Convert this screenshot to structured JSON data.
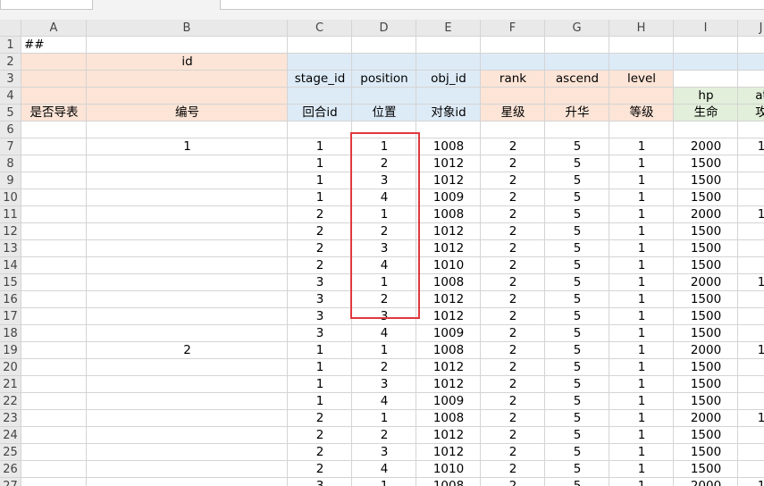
{
  "columns": [
    "A",
    "B",
    "C",
    "D",
    "E",
    "F",
    "G",
    "H",
    "I",
    "J"
  ],
  "rows": [
    1,
    2,
    3,
    4,
    5,
    6,
    7,
    8,
    9,
    10,
    11,
    12,
    13,
    14,
    15,
    16,
    17,
    18,
    19,
    20,
    21,
    22,
    23,
    24,
    25,
    26,
    27
  ],
  "cells": {
    "A1": "##",
    "B2": "id",
    "C3": "stage_id",
    "D3": "position",
    "E3": "obj_id",
    "F3": "rank",
    "G3": "ascend",
    "H3": "level",
    "I4": "hp",
    "J4": "at",
    "A5": "是否导表",
    "B5": "编号",
    "C5": "回合id",
    "D5": "位置",
    "E5": "对象id",
    "F5": "星级",
    "G5": "升华",
    "H5": "等级",
    "I5": "生命",
    "J5": "攻",
    "B7": 1,
    "C7": 1,
    "D7": 1,
    "E7": 1008,
    "F7": 2,
    "G7": 5,
    "H7": 1,
    "I7": 2000,
    "J7": 1,
    "C8": 1,
    "D8": 2,
    "E8": 1012,
    "F8": 2,
    "G8": 5,
    "H8": 1,
    "I8": 1500,
    "C9": 1,
    "D9": 3,
    "E9": 1012,
    "F9": 2,
    "G9": 5,
    "H9": 1,
    "I9": 1500,
    "C10": 1,
    "D10": 4,
    "E10": 1009,
    "F10": 2,
    "G10": 5,
    "H10": 1,
    "I10": 1500,
    "C11": 2,
    "D11": 1,
    "E11": 1008,
    "F11": 2,
    "G11": 5,
    "H11": 1,
    "I11": 2000,
    "J11": 1,
    "C12": 2,
    "D12": 2,
    "E12": 1012,
    "F12": 2,
    "G12": 5,
    "H12": 1,
    "I12": 1500,
    "C13": 2,
    "D13": 3,
    "E13": 1012,
    "F13": 2,
    "G13": 5,
    "H13": 1,
    "I13": 1500,
    "C14": 2,
    "D14": 4,
    "E14": 1010,
    "F14": 2,
    "G14": 5,
    "H14": 1,
    "I14": 1500,
    "C15": 3,
    "D15": 1,
    "E15": 1008,
    "F15": 2,
    "G15": 5,
    "H15": 1,
    "I15": 2000,
    "J15": 1,
    "C16": 3,
    "D16": 2,
    "E16": 1012,
    "F16": 2,
    "G16": 5,
    "H16": 1,
    "I16": 1500,
    "C17": 3,
    "D17": 3,
    "E17": 1012,
    "F17": 2,
    "G17": 5,
    "H17": 1,
    "I17": 1500,
    "C18": 3,
    "D18": 4,
    "E18": 1009,
    "F18": 2,
    "G18": 5,
    "H18": 1,
    "I18": 1500,
    "B19": 2,
    "C19": 1,
    "D19": 1,
    "E19": 1008,
    "F19": 2,
    "G19": 5,
    "H19": 1,
    "I19": 2000,
    "J19": 1,
    "C20": 1,
    "D20": 2,
    "E20": 1012,
    "F20": 2,
    "G20": 5,
    "H20": 1,
    "I20": 1500,
    "C21": 1,
    "D21": 3,
    "E21": 1012,
    "F21": 2,
    "G21": 5,
    "H21": 1,
    "I21": 1500,
    "C22": 1,
    "D22": 4,
    "E22": 1009,
    "F22": 2,
    "G22": 5,
    "H22": 1,
    "I22": 1500,
    "C23": 2,
    "D23": 1,
    "E23": 1008,
    "F23": 2,
    "G23": 5,
    "H23": 1,
    "I23": 2000,
    "J23": 1,
    "C24": 2,
    "D24": 2,
    "E24": 1012,
    "F24": 2,
    "G24": 5,
    "H24": 1,
    "I24": 1500,
    "C25": 2,
    "D25": 3,
    "E25": 1012,
    "F25": 2,
    "G25": 5,
    "H25": 1,
    "I25": 1500,
    "C26": 2,
    "D26": 4,
    "E26": 1010,
    "F26": 2,
    "G26": 5,
    "H26": 1,
    "I26": 1500,
    "C27": 3,
    "D27": 1,
    "E27": 1008,
    "F27": 2,
    "G27": 5,
    "H27": 1,
    "I27": 2000,
    "J27": 1
  }
}
